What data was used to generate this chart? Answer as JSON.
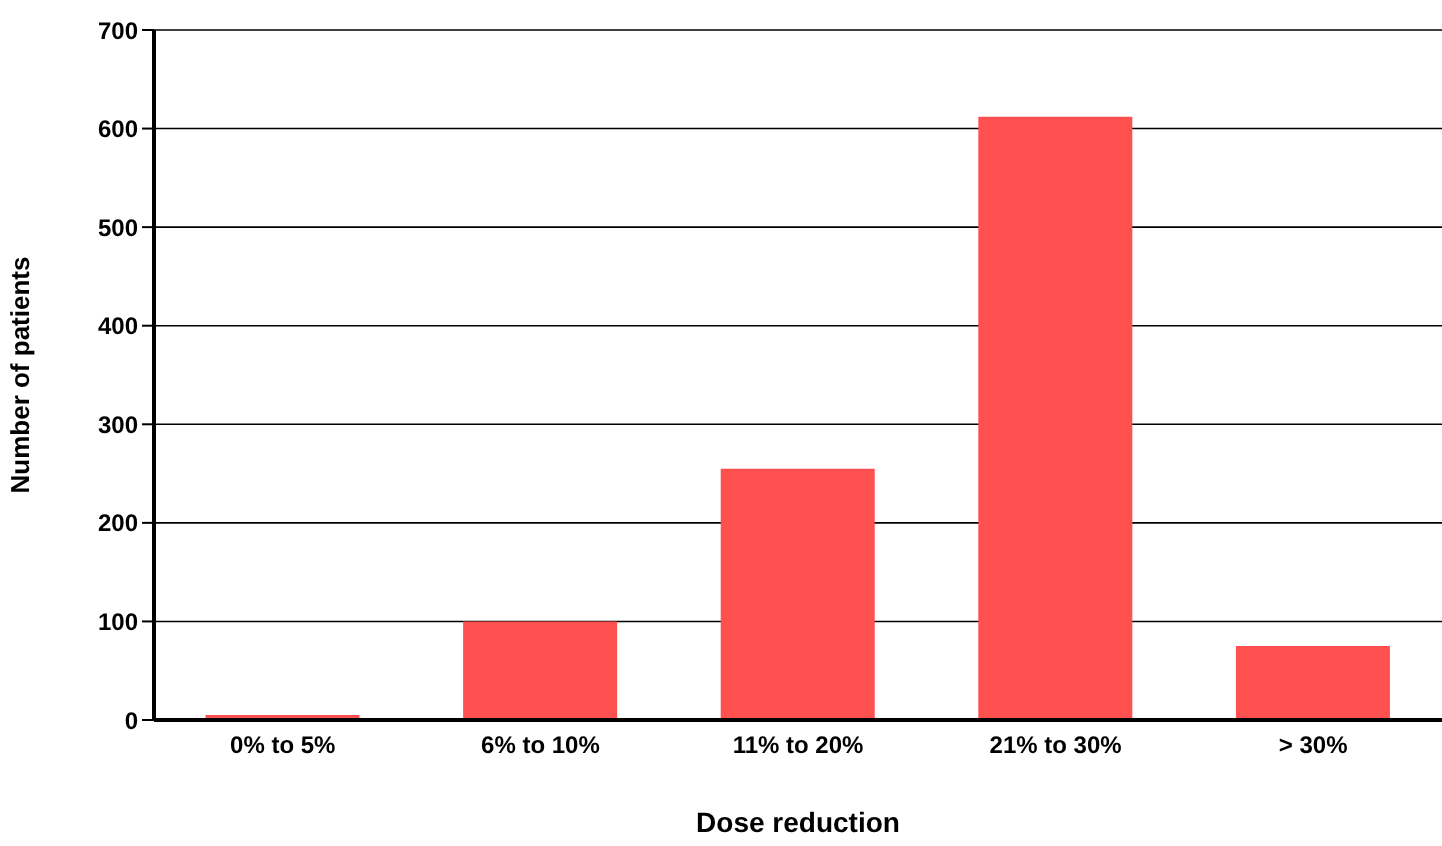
{
  "chart_data": {
    "type": "bar",
    "xlabel": "Dose reduction",
    "ylabel": "Number of patients",
    "categories": [
      "0% to 5%",
      "6% to 10%",
      "11% to 20%",
      "21% to 30%",
      "> 30%"
    ],
    "values": [
      5,
      100,
      255,
      612,
      75
    ],
    "color": "#ff5050",
    "ylim": [
      0,
      700
    ],
    "yticks": [
      0,
      100,
      200,
      300,
      400,
      500,
      600,
      700
    ],
    "grid": "y",
    "legend": false
  }
}
